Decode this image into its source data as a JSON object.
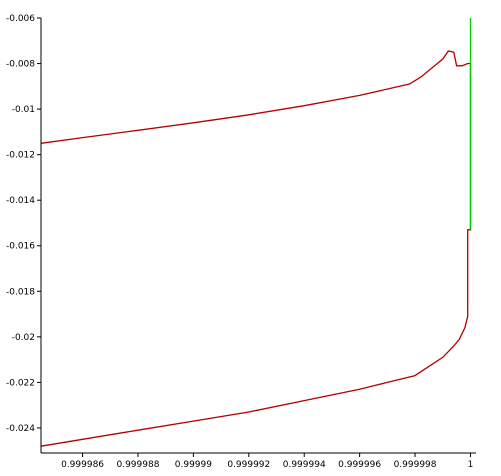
{
  "chart_data": {
    "type": "line",
    "title": "",
    "xlabel": "",
    "ylabel": "",
    "xlim": [
      0.9999845,
      1.0000002
    ],
    "ylim": [
      -0.0251,
      -0.006
    ],
    "grid": false,
    "legend": "none",
    "x_ticks": [
      {
        "value": 0.999986,
        "label": "0.999986"
      },
      {
        "value": 0.999988,
        "label": "0.999988"
      },
      {
        "value": 0.99999,
        "label": "0.99999"
      },
      {
        "value": 0.999992,
        "label": "0.999992"
      },
      {
        "value": 0.999994,
        "label": "0.999994"
      },
      {
        "value": 0.999996,
        "label": "0.999996"
      },
      {
        "value": 0.999998,
        "label": "0.999998"
      },
      {
        "value": 1.0,
        "label": "1"
      }
    ],
    "y_ticks": [
      {
        "value": -0.006,
        "label": "-0.006"
      },
      {
        "value": -0.008,
        "label": "-0.008"
      },
      {
        "value": -0.01,
        "label": "-0.01"
      },
      {
        "value": -0.012,
        "label": "-0.012"
      },
      {
        "value": -0.014,
        "label": "-0.014"
      },
      {
        "value": -0.016,
        "label": "-0.016"
      },
      {
        "value": -0.018,
        "label": "-0.018"
      },
      {
        "value": -0.02,
        "label": "-0.02"
      },
      {
        "value": -0.022,
        "label": "-0.022"
      },
      {
        "value": -0.024,
        "label": "-0.024"
      }
    ],
    "series": [
      {
        "color": "#b40000",
        "points": [
          [
            0.9999845,
            -0.0115
          ],
          [
            0.999986,
            -0.01125
          ],
          [
            0.999988,
            -0.01093
          ],
          [
            0.99999,
            -0.0106
          ],
          [
            0.999992,
            -0.01025
          ],
          [
            0.999994,
            -0.00985
          ],
          [
            0.999996,
            -0.0094
          ],
          [
            0.9999978,
            -0.0089
          ],
          [
            0.9999982,
            -0.0086
          ],
          [
            0.9999986,
            -0.0082
          ],
          [
            0.999999,
            -0.0078
          ],
          [
            0.9999992,
            -0.00745
          ],
          [
            0.9999994,
            -0.0075
          ],
          [
            0.9999995,
            -0.0081
          ],
          [
            0.9999997,
            -0.0081
          ],
          [
            0.9999999,
            -0.008
          ],
          [
            1.0,
            -0.008
          ],
          [
            1.0,
            -0.0153
          ],
          [
            0.9999999,
            -0.0153
          ],
          [
            0.9999999,
            -0.0185
          ],
          [
            0.9999999,
            -0.0191
          ],
          [
            0.9999998,
            -0.0196
          ],
          [
            0.9999996,
            -0.0201
          ],
          [
            0.9999994,
            -0.0204
          ],
          [
            0.999999,
            -0.0209
          ],
          [
            0.999998,
            -0.0217
          ],
          [
            0.999996,
            -0.0223
          ],
          [
            0.999994,
            -0.0228
          ],
          [
            0.999992,
            -0.0233
          ],
          [
            0.99999,
            -0.0237
          ],
          [
            0.999988,
            -0.0241
          ],
          [
            0.999986,
            -0.0245
          ],
          [
            0.9999845,
            -0.0248
          ]
        ]
      },
      {
        "color": "#00cc00",
        "points": [
          [
            1.0,
            -0.006
          ],
          [
            1.0,
            -0.0153
          ]
        ]
      }
    ]
  }
}
